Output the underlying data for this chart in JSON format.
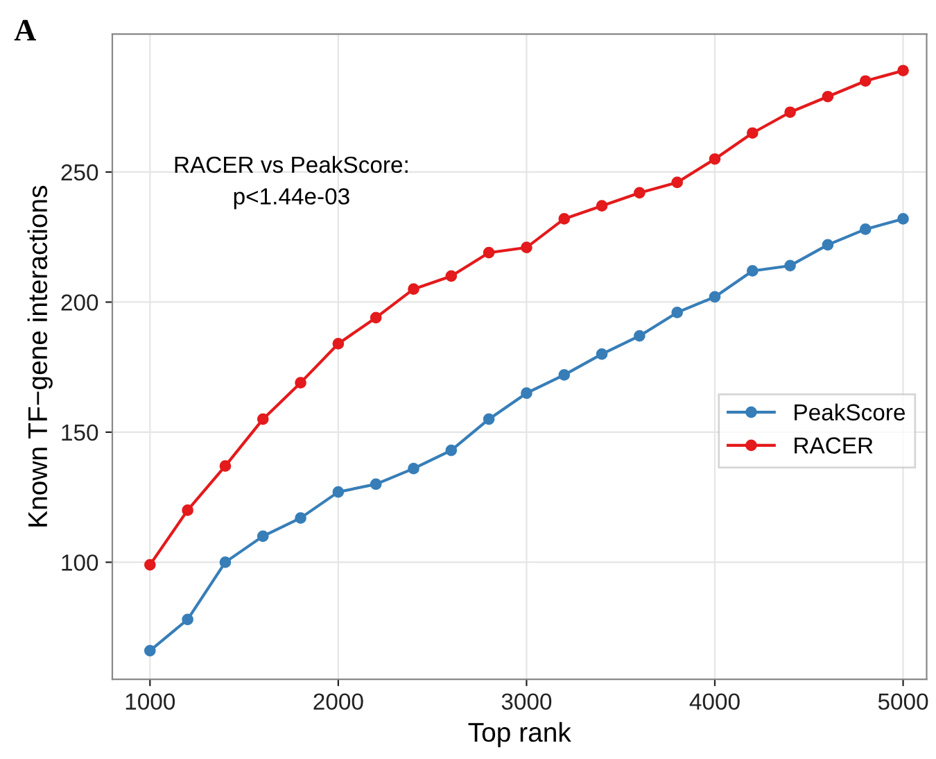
{
  "chart_data": {
    "type": "line",
    "xlabel": "Top rank",
    "ylabel": "Known TF−gene interactions",
    "annotations": [
      "A",
      "RACER vs PeakScore:\np<1.44e-03"
    ],
    "x": [
      1000,
      1200,
      1400,
      1600,
      1800,
      2000,
      2200,
      2400,
      2600,
      2800,
      3000,
      3200,
      3400,
      3600,
      3800,
      4000,
      4200,
      4400,
      4600,
      4800,
      5000
    ],
    "series": [
      {
        "name": "PeakScore",
        "color": "#377eb8",
        "values": [
          66,
          78,
          100,
          110,
          117,
          127,
          130,
          136,
          143,
          155,
          165,
          172,
          180,
          187,
          196,
          202,
          212,
          214,
          222,
          228,
          232
        ]
      },
      {
        "name": "RACER",
        "color": "#e41a1c",
        "values": [
          99,
          120,
          137,
          155,
          169,
          184,
          194,
          205,
          210,
          219,
          221,
          232,
          237,
          242,
          246,
          255,
          265,
          273,
          279,
          285,
          289
        ]
      }
    ],
    "xlim": [
      800,
      5125
    ],
    "ylim": [
      55,
      303
    ],
    "xticks": [
      1000,
      2000,
      3000,
      4000,
      5000
    ],
    "yticks": [
      100,
      150,
      200,
      250
    ],
    "grid": true,
    "legend": "right",
    "marker": "circle",
    "line_style": "solid"
  }
}
